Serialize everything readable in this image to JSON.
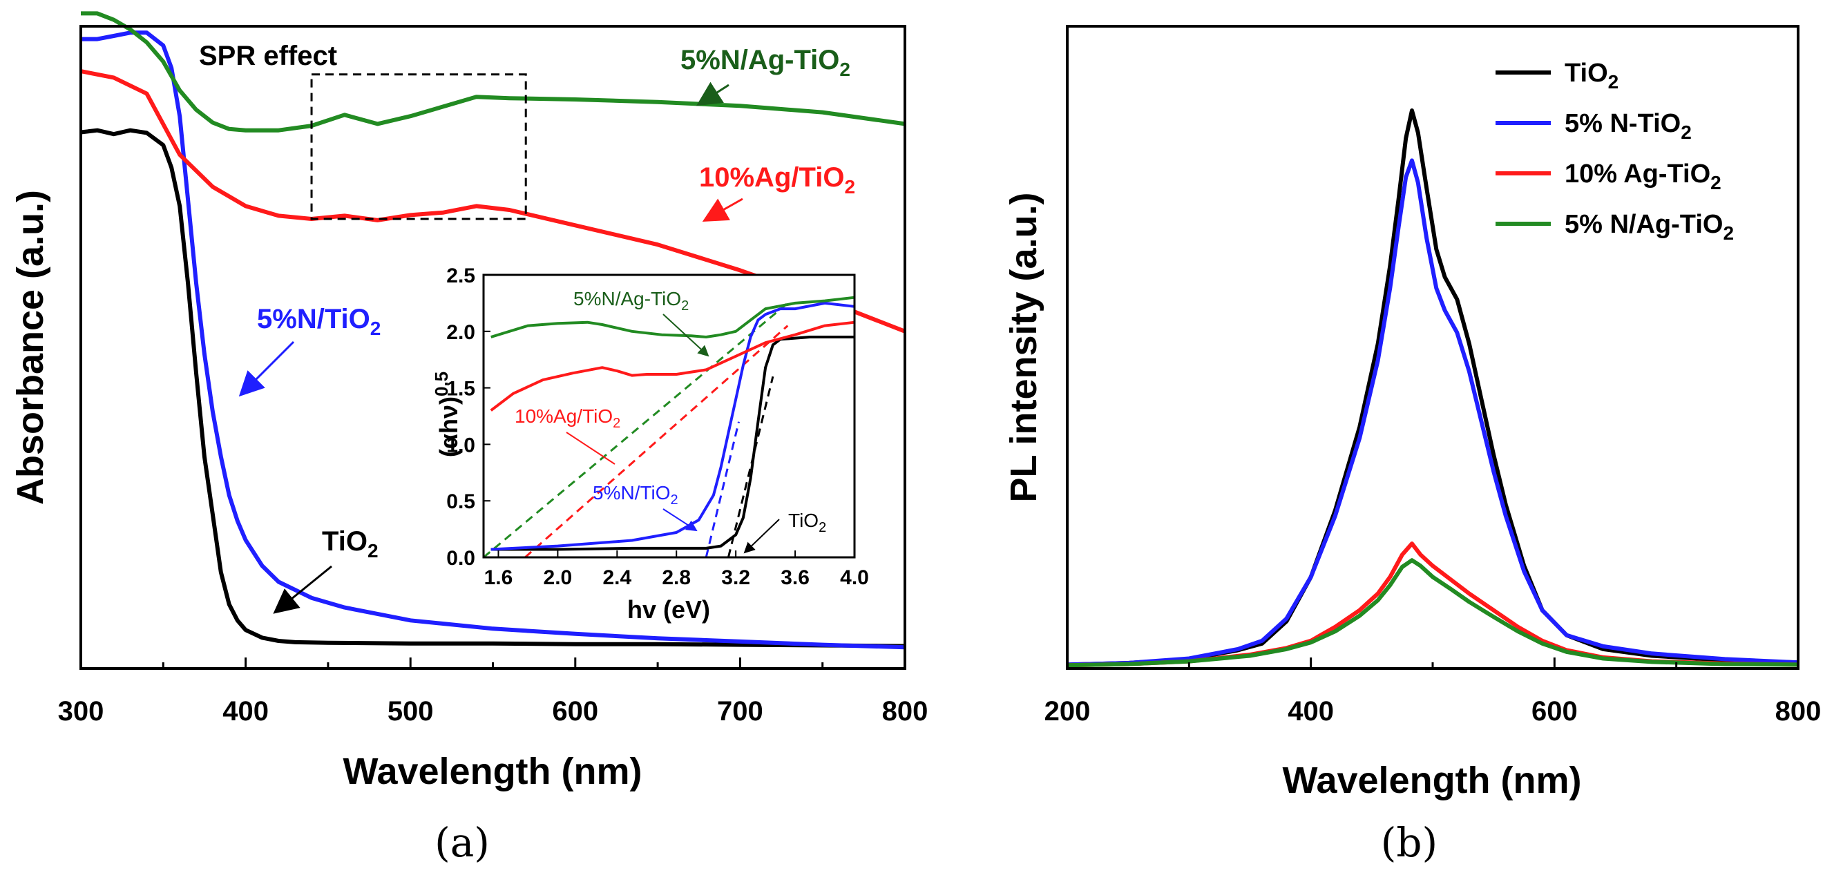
{
  "chart_data": [
    {
      "id": "a",
      "type": "line",
      "caption": "(a)",
      "xlabel": "Wavelength (nm)",
      "ylabel": "Absorbance (a.u.)",
      "xlim": [
        300,
        800
      ],
      "ylim": [
        0,
        1
      ],
      "xticks": [
        300,
        400,
        500,
        600,
        700,
        800
      ],
      "xtick_labels": [
        "300",
        "400",
        "500",
        "600",
        "700",
        "800"
      ],
      "annotation_box": {
        "label": "SPR effect",
        "x_range": [
          440,
          570
        ],
        "y_range": [
          0.7,
          0.925
        ]
      },
      "series": [
        {
          "name": "TiO2",
          "label_main": "TiO",
          "label_sub": "2",
          "color": "#000000",
          "x": [
            300,
            310,
            320,
            330,
            340,
            350,
            355,
            360,
            365,
            370,
            375,
            380,
            385,
            390,
            395,
            400,
            410,
            420,
            430,
            450,
            500,
            550,
            600,
            650,
            700,
            750,
            800
          ],
          "y": [
            0.835,
            0.838,
            0.832,
            0.838,
            0.834,
            0.815,
            0.78,
            0.72,
            0.6,
            0.46,
            0.33,
            0.24,
            0.15,
            0.1,
            0.075,
            0.06,
            0.048,
            0.043,
            0.041,
            0.04,
            0.039,
            0.039,
            0.038,
            0.038,
            0.037,
            0.036,
            0.035
          ]
        },
        {
          "name": "5%N/TiO2",
          "label_main": "5%N/TiO",
          "label_sub": "2",
          "color": "#1f1fff",
          "x": [
            300,
            310,
            320,
            330,
            340,
            350,
            355,
            360,
            365,
            370,
            375,
            380,
            385,
            390,
            395,
            400,
            410,
            420,
            440,
            460,
            500,
            550,
            600,
            650,
            700,
            750,
            800
          ],
          "y": [
            0.98,
            0.98,
            0.985,
            0.99,
            0.99,
            0.97,
            0.935,
            0.86,
            0.73,
            0.6,
            0.49,
            0.4,
            0.33,
            0.27,
            0.23,
            0.2,
            0.16,
            0.135,
            0.11,
            0.095,
            0.075,
            0.062,
            0.054,
            0.047,
            0.042,
            0.037,
            0.033
          ]
        },
        {
          "name": "10%Ag/TiO2",
          "label_main": "10%Ag/TiO",
          "label_sub": "2",
          "color": "#ff1a1a",
          "x": [
            300,
            320,
            340,
            360,
            380,
            400,
            420,
            440,
            460,
            480,
            500,
            520,
            540,
            560,
            600,
            650,
            700,
            750,
            800
          ],
          "y": [
            0.93,
            0.92,
            0.895,
            0.8,
            0.75,
            0.72,
            0.705,
            0.7,
            0.705,
            0.698,
            0.706,
            0.71,
            0.72,
            0.714,
            0.69,
            0.66,
            0.62,
            0.575,
            0.525
          ]
        },
        {
          "name": "5%N/Ag-TiO2",
          "label_main": "5%N/Ag-TiO",
          "label_sub": "2",
          "color": "#228b22",
          "x": [
            300,
            310,
            320,
            330,
            340,
            350,
            360,
            370,
            380,
            390,
            400,
            420,
            440,
            460,
            480,
            500,
            520,
            540,
            560,
            600,
            650,
            700,
            750,
            800
          ],
          "y": [
            1.02,
            1.02,
            1.01,
            0.995,
            0.975,
            0.945,
            0.9,
            0.87,
            0.85,
            0.84,
            0.838,
            0.838,
            0.845,
            0.862,
            0.848,
            0.86,
            0.875,
            0.89,
            0.888,
            0.886,
            0.882,
            0.876,
            0.866,
            0.848
          ]
        }
      ],
      "inset": {
        "xlabel": "hv (eV)",
        "ylabel": "(αhν)^0.5",
        "ylabel_main": "(αhν)",
        "ylabel_sup": "0.5",
        "xlim": [
          1.5,
          4.0
        ],
        "ylim": [
          0.0,
          2.5
        ],
        "xticks": [
          1.6,
          2.0,
          2.4,
          2.8,
          3.2,
          3.6,
          4.0
        ],
        "xtick_labels": [
          "1.6",
          "2.0",
          "2.4",
          "2.8",
          "3.2",
          "3.6",
          "4.0"
        ],
        "yticks": [
          0.0,
          0.5,
          1.0,
          1.5,
          2.0,
          2.5
        ],
        "ytick_labels": [
          "0.0",
          "0.5",
          "1.0",
          "1.5",
          "2.0",
          "2.5"
        ],
        "series": [
          {
            "name": "TiO2",
            "label_main": "TiO",
            "label_sub": "2",
            "color": "#000000",
            "x": [
              1.55,
              2.0,
              2.5,
              3.0,
              3.1,
              3.2,
              3.25,
              3.3,
              3.35,
              3.4,
              3.45,
              3.5,
              3.7,
              4.0
            ],
            "y": [
              0.07,
              0.07,
              0.08,
              0.08,
              0.1,
              0.2,
              0.35,
              0.7,
              1.2,
              1.68,
              1.88,
              1.93,
              1.95,
              1.95
            ],
            "tangent": {
              "x": [
                3.15,
                3.45
              ],
              "y": [
                0.0,
                1.6
              ]
            }
          },
          {
            "name": "5%N/TiO2",
            "label_main": "5%N/TiO",
            "label_sub": "2",
            "color": "#1f1fff",
            "x": [
              1.55,
              2.0,
              2.5,
              2.8,
              2.95,
              3.05,
              3.1,
              3.15,
              3.2,
              3.25,
              3.3,
              3.35,
              3.4,
              3.5,
              3.6,
              3.8,
              4.0
            ],
            "y": [
              0.07,
              0.1,
              0.15,
              0.22,
              0.33,
              0.55,
              0.8,
              1.1,
              1.4,
              1.7,
              1.95,
              2.1,
              2.15,
              2.2,
              2.2,
              2.25,
              2.22
            ],
            "tangent": {
              "x": [
                3.0,
                3.22
              ],
              "y": [
                0.0,
                1.2
              ]
            }
          },
          {
            "name": "10%Ag/TiO2",
            "label_main": "10%Ag/TiO",
            "label_sub": "2",
            "color": "#ff1a1a",
            "x": [
              1.55,
              1.7,
              1.9,
              2.1,
              2.3,
              2.4,
              2.5,
              2.6,
              2.8,
              3.0,
              3.2,
              3.4,
              3.6,
              3.8,
              4.0
            ],
            "y": [
              1.3,
              1.45,
              1.57,
              1.63,
              1.68,
              1.65,
              1.61,
              1.62,
              1.62,
              1.66,
              1.78,
              1.9,
              1.97,
              2.05,
              2.08
            ],
            "tangent": {
              "x": [
                1.78,
                3.55
              ],
              "y": [
                0.0,
                2.05
              ]
            }
          },
          {
            "name": "5%N/Ag-TiO2",
            "label_main": "5%N/Ag-TiO",
            "label_sub": "2",
            "color": "#228b22",
            "x": [
              1.55,
              1.8,
              2.0,
              2.2,
              2.3,
              2.5,
              2.7,
              2.9,
              3.0,
              3.1,
              3.2,
              3.3,
              3.4,
              3.6,
              3.8,
              4.0
            ],
            "y": [
              1.95,
              2.05,
              2.07,
              2.08,
              2.06,
              2.0,
              1.97,
              1.96,
              1.95,
              1.97,
              2.0,
              2.1,
              2.2,
              2.25,
              2.27,
              2.3
            ],
            "tangent": {
              "x": [
                1.5,
                3.55
              ],
              "y": [
                0.0,
                2.25
              ]
            }
          }
        ]
      }
    },
    {
      "id": "b",
      "type": "line",
      "caption": "(b)",
      "xlabel": "Wavelength (nm)",
      "ylabel": "PL intensity (a.u.)",
      "xlim": [
        200,
        800
      ],
      "ylim": [
        0,
        1
      ],
      "xticks": [
        200,
        400,
        600,
        800
      ],
      "xtick_labels": [
        "200",
        "400",
        "600",
        "800"
      ],
      "legend_position": "top-right",
      "series": [
        {
          "name": "TiO2",
          "label_main": "TiO",
          "label_sub": "2",
          "color": "#000000",
          "x": [
            200,
            250,
            300,
            340,
            360,
            380,
            400,
            420,
            440,
            455,
            465,
            472,
            478,
            483,
            488,
            495,
            503,
            510,
            520,
            530,
            540,
            550,
            560,
            575,
            590,
            610,
            640,
            680,
            740,
            800
          ],
          "y": [
            0.002,
            0.005,
            0.012,
            0.028,
            0.04,
            0.08,
            0.16,
            0.28,
            0.43,
            0.58,
            0.72,
            0.84,
            0.95,
            1.0,
            0.96,
            0.86,
            0.75,
            0.7,
            0.66,
            0.58,
            0.48,
            0.38,
            0.29,
            0.18,
            0.1,
            0.055,
            0.03,
            0.018,
            0.01,
            0.006
          ]
        },
        {
          "name": "5% N-TiO2",
          "label_main": "5% N-TiO",
          "label_sub": "2",
          "color": "#1f1fff",
          "x": [
            200,
            250,
            300,
            340,
            360,
            380,
            400,
            420,
            440,
            455,
            465,
            472,
            478,
            483,
            488,
            495,
            503,
            510,
            520,
            530,
            540,
            550,
            560,
            575,
            590,
            610,
            640,
            680,
            740,
            800
          ],
          "y": [
            0.002,
            0.005,
            0.013,
            0.03,
            0.045,
            0.085,
            0.16,
            0.27,
            0.41,
            0.55,
            0.68,
            0.79,
            0.88,
            0.91,
            0.87,
            0.77,
            0.68,
            0.64,
            0.6,
            0.53,
            0.44,
            0.35,
            0.27,
            0.17,
            0.1,
            0.055,
            0.035,
            0.022,
            0.012,
            0.006
          ]
        },
        {
          "name": "10% Ag-TiO2",
          "label_main": "10% Ag-TiO",
          "label_sub": "2",
          "color": "#ff1a1a",
          "x": [
            200,
            250,
            300,
            350,
            380,
            400,
            420,
            440,
            455,
            465,
            475,
            483,
            490,
            500,
            515,
            530,
            550,
            570,
            590,
            610,
            640,
            680,
            740,
            800
          ],
          "y": [
            0.001,
            0.003,
            0.008,
            0.02,
            0.032,
            0.045,
            0.07,
            0.1,
            0.13,
            0.16,
            0.2,
            0.22,
            0.2,
            0.18,
            0.155,
            0.13,
            0.1,
            0.07,
            0.045,
            0.028,
            0.015,
            0.008,
            0.004,
            0.002
          ]
        },
        {
          "name": "5% N/Ag-TiO2",
          "label_main": "5% N/Ag-TiO",
          "label_sub": "2",
          "color": "#228b22",
          "x": [
            200,
            250,
            300,
            350,
            380,
            400,
            420,
            440,
            455,
            465,
            475,
            483,
            490,
            500,
            515,
            530,
            550,
            570,
            590,
            610,
            640,
            680,
            740,
            800
          ],
          "y": [
            0.001,
            0.003,
            0.008,
            0.018,
            0.03,
            0.042,
            0.062,
            0.09,
            0.118,
            0.145,
            0.178,
            0.19,
            0.18,
            0.16,
            0.138,
            0.115,
            0.088,
            0.062,
            0.04,
            0.025,
            0.013,
            0.007,
            0.003,
            0.002
          ]
        }
      ]
    }
  ]
}
